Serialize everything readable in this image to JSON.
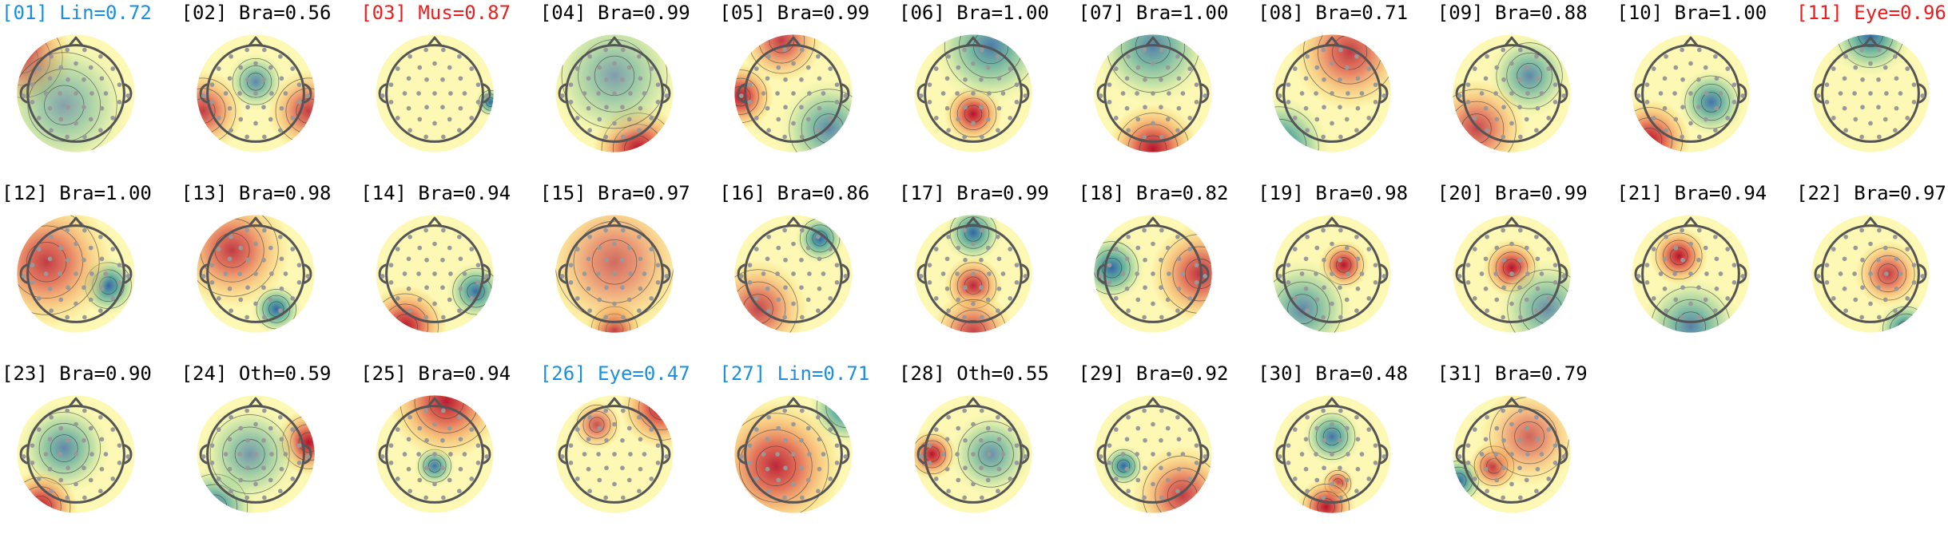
{
  "colors": {
    "default_label": "#000000",
    "red_label": "#ee1c1c",
    "blue_label": "#1a8fe0",
    "head_outline": "#555555",
    "contour": "#3c3c3c",
    "electrode": "#999999",
    "colormap": [
      "#3264a8",
      "#3f9c9a",
      "#8ccb9a",
      "#dff0a6",
      "#fdf8b4",
      "#f9d77c",
      "#f3a25a",
      "#d9423a",
      "#b3122c"
    ]
  },
  "components": [
    {
      "label": "[01] Lin=0.72",
      "label_color": "blue",
      "icon": "scalp-topomap-icon"
    },
    {
      "label": "[02] Bra=0.56",
      "label_color": "default",
      "icon": "scalp-topomap-icon"
    },
    {
      "label": "[03] Mus=0.87",
      "label_color": "red",
      "icon": "scalp-topomap-icon"
    },
    {
      "label": "[04] Bra=0.99",
      "label_color": "default",
      "icon": "scalp-topomap-icon"
    },
    {
      "label": "[05] Bra=0.99",
      "label_color": "default",
      "icon": "scalp-topomap-icon"
    },
    {
      "label": "[06] Bra=1.00",
      "label_color": "default",
      "icon": "scalp-topomap-icon"
    },
    {
      "label": "[07] Bra=1.00",
      "label_color": "default",
      "icon": "scalp-topomap-icon"
    },
    {
      "label": "[08] Bra=0.71",
      "label_color": "default",
      "icon": "scalp-topomap-icon"
    },
    {
      "label": "[09] Bra=0.88",
      "label_color": "default",
      "icon": "scalp-topomap-icon"
    },
    {
      "label": "[10] Bra=1.00",
      "label_color": "default",
      "icon": "scalp-topomap-icon"
    },
    {
      "label": "[11] Eye=0.96",
      "label_color": "red",
      "icon": "scalp-topomap-icon"
    },
    {
      "label": "[12] Bra=1.00",
      "label_color": "default",
      "icon": "scalp-topomap-icon"
    },
    {
      "label": "[13] Bra=0.98",
      "label_color": "default",
      "icon": "scalp-topomap-icon"
    },
    {
      "label": "[14] Bra=0.94",
      "label_color": "default",
      "icon": "scalp-topomap-icon"
    },
    {
      "label": "[15] Bra=0.97",
      "label_color": "default",
      "icon": "scalp-topomap-icon"
    },
    {
      "label": "[16] Bra=0.86",
      "label_color": "default",
      "icon": "scalp-topomap-icon"
    },
    {
      "label": "[17] Bra=0.99",
      "label_color": "default",
      "icon": "scalp-topomap-icon"
    },
    {
      "label": "[18] Bra=0.82",
      "label_color": "default",
      "icon": "scalp-topomap-icon"
    },
    {
      "label": "[19] Bra=0.98",
      "label_color": "default",
      "icon": "scalp-topomap-icon"
    },
    {
      "label": "[20] Bra=0.99",
      "label_color": "default",
      "icon": "scalp-topomap-icon"
    },
    {
      "label": "[21] Bra=0.94",
      "label_color": "default",
      "icon": "scalp-topomap-icon"
    },
    {
      "label": "[22] Bra=0.97",
      "label_color": "default",
      "icon": "scalp-topomap-icon"
    },
    {
      "label": "[23] Bra=0.90",
      "label_color": "default",
      "icon": "scalp-topomap-icon"
    },
    {
      "label": "[24] Oth=0.59",
      "label_color": "default",
      "icon": "scalp-topomap-icon"
    },
    {
      "label": "[25] Bra=0.94",
      "label_color": "default",
      "icon": "scalp-topomap-icon"
    },
    {
      "label": "[26] Eye=0.47",
      "label_color": "blue",
      "icon": "scalp-topomap-icon"
    },
    {
      "label": "[27] Lin=0.71",
      "label_color": "blue",
      "icon": "scalp-topomap-icon"
    },
    {
      "label": "[28] Oth=0.55",
      "label_color": "default",
      "icon": "scalp-topomap-icon"
    },
    {
      "label": "[29] Bra=0.92",
      "label_color": "default",
      "icon": "scalp-topomap-icon"
    },
    {
      "label": "[30] Bra=0.48",
      "label_color": "default",
      "icon": "scalp-topomap-icon"
    },
    {
      "label": "[31] Bra=0.79",
      "label_color": "default",
      "icon": "scalp-topomap-icon"
    }
  ]
}
